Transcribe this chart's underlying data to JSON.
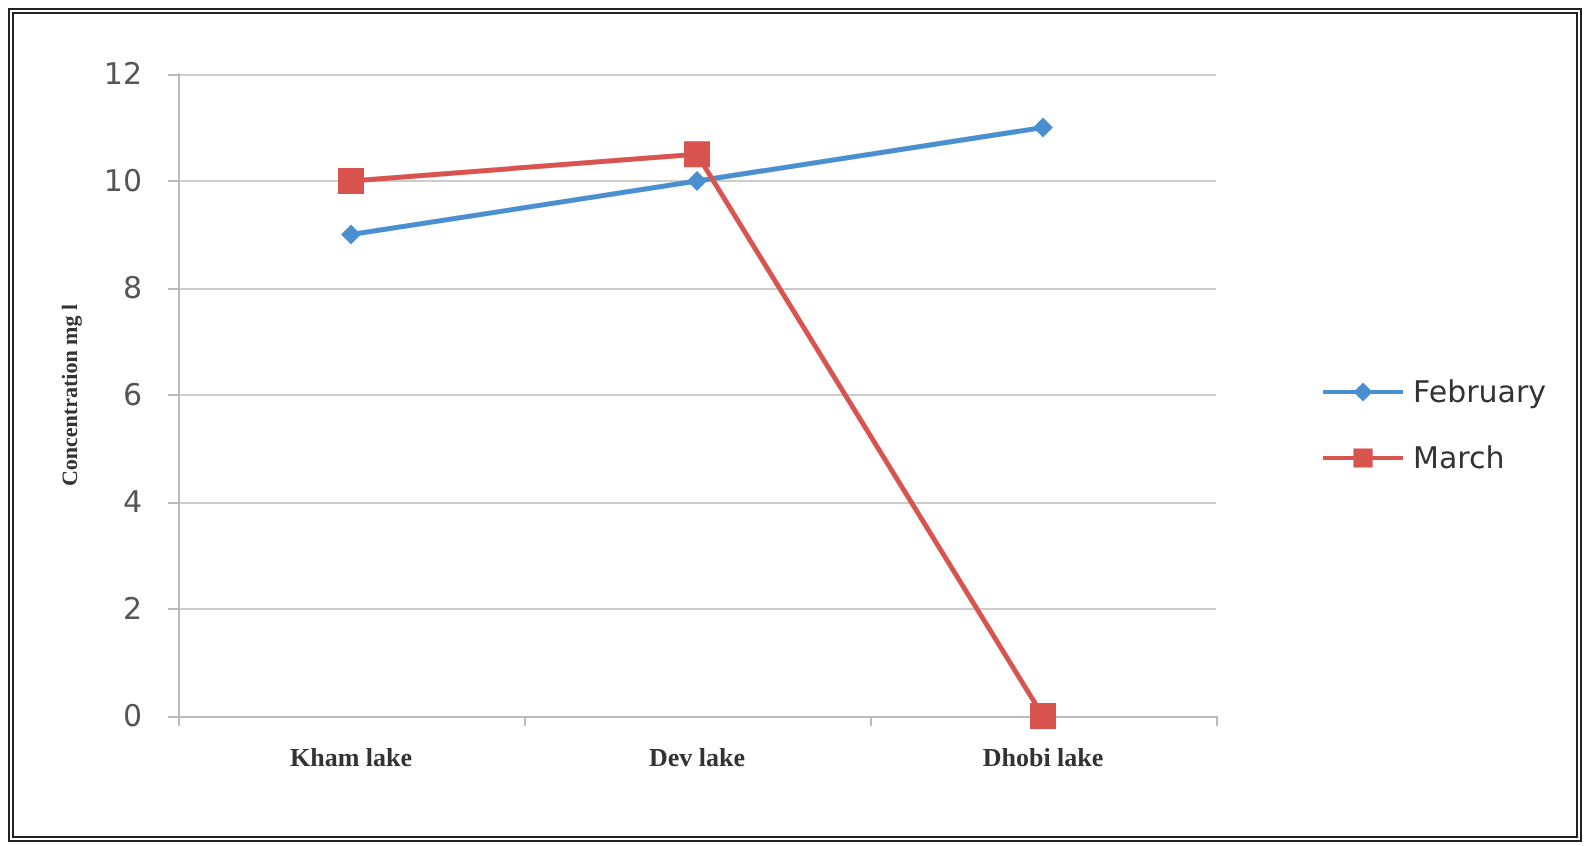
{
  "chart_data": {
    "type": "line",
    "ylabel": "Concentration mg l",
    "categories": [
      "Kham lake",
      "Dev lake",
      "Dhobi lake"
    ],
    "series": [
      {
        "name": "February",
        "color": "#4a90d0",
        "values": [
          9,
          10,
          11
        ],
        "marker": "diamond"
      },
      {
        "name": "March",
        "color": "#d9534f",
        "values": [
          10,
          10.5,
          0
        ],
        "marker": "square"
      }
    ],
    "ylim": [
      0,
      12
    ],
    "yticks": [
      0,
      2,
      4,
      6,
      8,
      10,
      12
    ],
    "grid": "y",
    "legend": "right"
  }
}
